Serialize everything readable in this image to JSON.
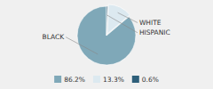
{
  "chart_data": {
    "type": "pie",
    "categories": [
      "BLACK",
      "WHITE",
      "HISPANIC"
    ],
    "values": [
      86.2,
      13.3,
      0.6
    ],
    "value_labels": [
      "86.2%",
      "13.3%",
      "0.6%"
    ],
    "colors": [
      "#7fa8b8",
      "#dce9f0",
      "#2e5f7a"
    ],
    "legend": "bottom"
  }
}
